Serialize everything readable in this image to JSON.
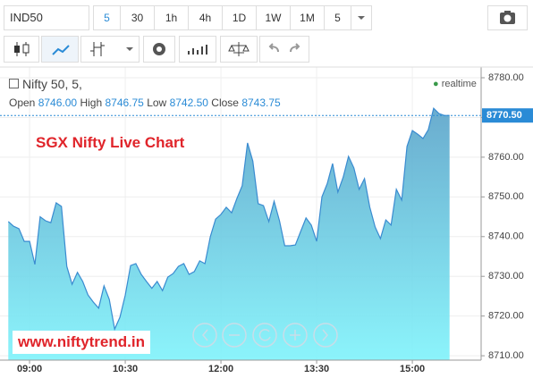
{
  "toolbar": {
    "symbol": "IND50",
    "intervals": [
      "5",
      "30",
      "1h",
      "4h",
      "1D",
      "1W",
      "1M"
    ],
    "bar_count": "5"
  },
  "legend": {
    "symbol": "Nifty 50, 5,",
    "fields": [
      [
        "Open",
        "8746.00"
      ],
      [
        "High",
        "8746.75"
      ],
      [
        "Low",
        "8742.50"
      ],
      [
        "Close",
        "8743.75"
      ]
    ],
    "status": "realtime"
  },
  "annotations": {
    "title": "SGX Nifty Live Chart",
    "watermark": "www.niftytrend.in"
  },
  "chart_data": {
    "type": "area",
    "color": "#3a8bd0",
    "x": [
      520,
      525,
      530,
      535,
      540,
      545,
      550,
      555,
      560,
      565,
      570,
      575,
      580,
      585,
      590,
      595,
      600,
      605,
      610,
      615,
      620,
      625,
      630,
      635,
      640,
      645,
      650,
      655,
      660,
      665,
      670,
      675,
      680,
      685,
      690,
      695,
      700,
      705,
      710,
      715,
      720,
      725,
      730,
      735,
      740,
      745,
      750,
      755,
      760,
      765,
      770,
      775,
      780,
      785,
      790,
      795,
      800,
      805,
      810,
      815,
      820,
      825,
      830,
      835,
      840,
      845,
      850,
      855,
      860,
      865,
      870,
      875,
      880,
      885,
      890,
      895,
      900,
      905,
      910,
      915,
      920,
      925,
      930,
      935
    ],
    "values": [
      8743.8,
      8742.6,
      8742,
      8738.8,
      8738.8,
      8733,
      8745,
      8744,
      8743.5,
      8748.5,
      8747.6,
      8732.5,
      8728,
      8731,
      8728.7,
      8725.3,
      8723.5,
      8722,
      8727.6,
      8724.2,
      8716.7,
      8719.7,
      8725.3,
      8732.7,
      8733.2,
      8730.5,
      8728.7,
      8727,
      8728.7,
      8726.4,
      8729.8,
      8730.7,
      8732.5,
      8733.2,
      8730.5,
      8731.2,
      8733.9,
      8733.2,
      8740,
      8744.4,
      8745.6,
      8747.4,
      8746,
      8749.6,
      8752.8,
      8763.6,
      8759,
      8748.3,
      8747.8,
      8743.8,
      8748.9,
      8744,
      8737.7,
      8737.7,
      8737.9,
      8741.3,
      8744.7,
      8742.9,
      8738.8,
      8750,
      8753.4,
      8758.4,
      8751.2,
      8755,
      8760.2,
      8757.3,
      8751.9,
      8754.6,
      8747.4,
      8742.4,
      8739.5,
      8744.2,
      8742.9,
      8751.9,
      8749.2,
      8762.7,
      8766.7,
      8765.8,
      8764.7,
      8766.9,
      8772.3,
      8771,
      8770.5,
      8770.5
    ],
    "xlim": [
      512.2,
      964.7
    ],
    "xticks": [
      {
        "value": 540,
        "label": "09:00"
      },
      {
        "value": 630,
        "label": "10:30"
      },
      {
        "value": 720,
        "label": "12:00"
      },
      {
        "value": 810,
        "label": "13:30"
      },
      {
        "value": 900,
        "label": "15:00"
      }
    ],
    "ylim": [
      8708.9,
      8782.7
    ],
    "yticks": [
      {
        "value": 8710,
        "label": "8710.00"
      },
      {
        "value": 8720,
        "label": "8720.00"
      },
      {
        "value": 8730,
        "label": "8730.00"
      },
      {
        "value": 8740,
        "label": "8740.00"
      },
      {
        "value": 8750,
        "label": "8750.00"
      },
      {
        "value": 8760,
        "label": "8760.00"
      },
      {
        "value": 8770,
        "label": "8770.00"
      },
      {
        "value": 8780,
        "label": "8780.00"
      }
    ],
    "last_price": {
      "value": 8770.5,
      "label": "8770.50"
    },
    "grid": true
  }
}
